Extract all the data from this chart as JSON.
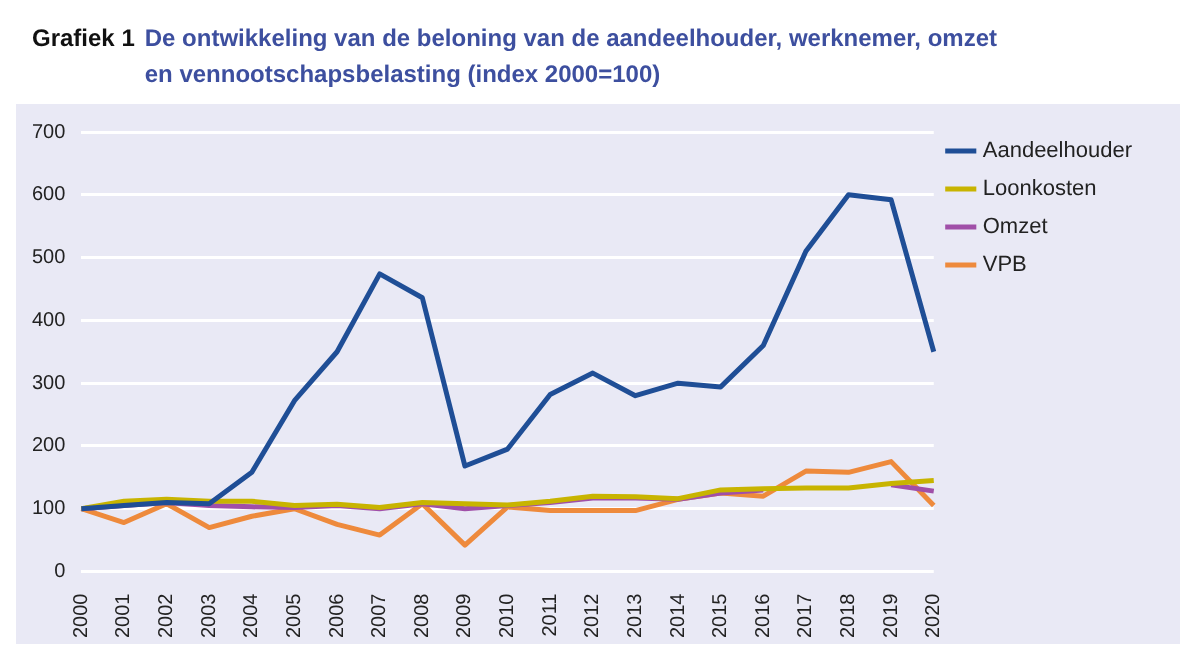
{
  "chart_data": {
    "type": "line",
    "title": "Grafiek 1",
    "subtitle": "De ontwikkeling van de beloning van de aandeelhouder, werknemer, omzet en vennootschapsbelasting (index 2000=100)",
    "categories": [
      "2000",
      "2001",
      "2002",
      "2003",
      "2004",
      "2005",
      "2006",
      "2007",
      "2008",
      "2009",
      "2010",
      "2011",
      "2012",
      "2013",
      "2014",
      "2015",
      "2016",
      "2017",
      "2018",
      "2019",
      "2020"
    ],
    "series": [
      {
        "name": "Aandeelhouder",
        "color": "#1f4e96",
        "values": [
          100,
          105,
          110,
          108,
          158,
          272,
          350,
          474,
          436,
          168,
          195,
          282,
          316,
          280,
          300,
          294,
          360,
          510,
          600,
          592,
          350
        ]
      },
      {
        "name": "Loonkosten",
        "color": "#c8b400",
        "values": [
          100,
          112,
          115,
          112,
          112,
          105,
          107,
          102,
          110,
          108,
          106,
          112,
          120,
          119,
          116,
          130,
          132,
          133,
          133,
          140,
          145
        ]
      },
      {
        "name": "Omzet",
        "color": "#a04fa8",
        "values": [
          100,
          105,
          110,
          105,
          103,
          102,
          105,
          100,
          108,
          100,
          105,
          110,
          117,
          117,
          115,
          125,
          130,
          null,
          null,
          138,
          128
        ]
      },
      {
        "name": "VPB",
        "color": "#ee8a3c",
        "values": [
          100,
          78,
          108,
          70,
          88,
          100,
          75,
          58,
          108,
          42,
          103,
          97,
          97,
          97,
          115,
          125,
          120,
          160,
          158,
          175,
          105
        ]
      }
    ],
    "ylim": [
      0,
      700
    ],
    "yticks": [
      0,
      100,
      200,
      300,
      400,
      500,
      600,
      700
    ],
    "grid": "y",
    "legend": "right",
    "marker": "none",
    "line_style": "solid"
  }
}
